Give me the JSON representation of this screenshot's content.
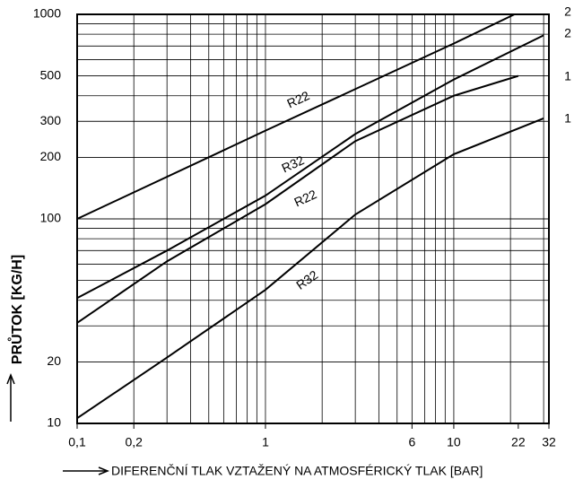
{
  "chart_data": {
    "type": "line",
    "x_label": "DIFERENČNÍ TLAK VZTAŽENÝ NA ATMOSFÉRICKÝ TLAK [BAR]",
    "y_label": "PRŮTOK [KG/H]",
    "log_x": true,
    "log_y": true,
    "grid": true,
    "xlim": [
      0.1,
      32
    ],
    "ylim": [
      10,
      1000
    ],
    "xticks": [
      {
        "value": 0.1,
        "label": "0,1"
      },
      {
        "value": 0.2,
        "label": "0,2"
      },
      1,
      6,
      10,
      22,
      32
    ],
    "yticks": [
      10,
      20,
      100,
      200,
      300,
      500,
      1000
    ],
    "annotations": [
      "2",
      "2",
      "1",
      "1"
    ],
    "series": [
      {
        "name": "R22",
        "color": "#000000",
        "x": [
          0.1,
          1,
          10,
          21
        ],
        "values": [
          100,
          270,
          720,
          1000
        ]
      },
      {
        "name": "R32",
        "color": "#000000",
        "x": [
          0.1,
          0.3,
          1,
          3,
          10,
          30
        ],
        "values": [
          41,
          70,
          130,
          260,
          480,
          790
        ]
      },
      {
        "name": "R22",
        "color": "#000000",
        "x": [
          0.1,
          0.3,
          1,
          3,
          10,
          22
        ],
        "values": [
          31,
          62,
          118,
          240,
          400,
          500
        ]
      },
      {
        "name": "R32",
        "color": "#000000",
        "x": [
          0.1,
          0.3,
          1,
          3,
          10,
          30
        ],
        "values": [
          10.6,
          21,
          45,
          105,
          207,
          310
        ]
      }
    ]
  }
}
